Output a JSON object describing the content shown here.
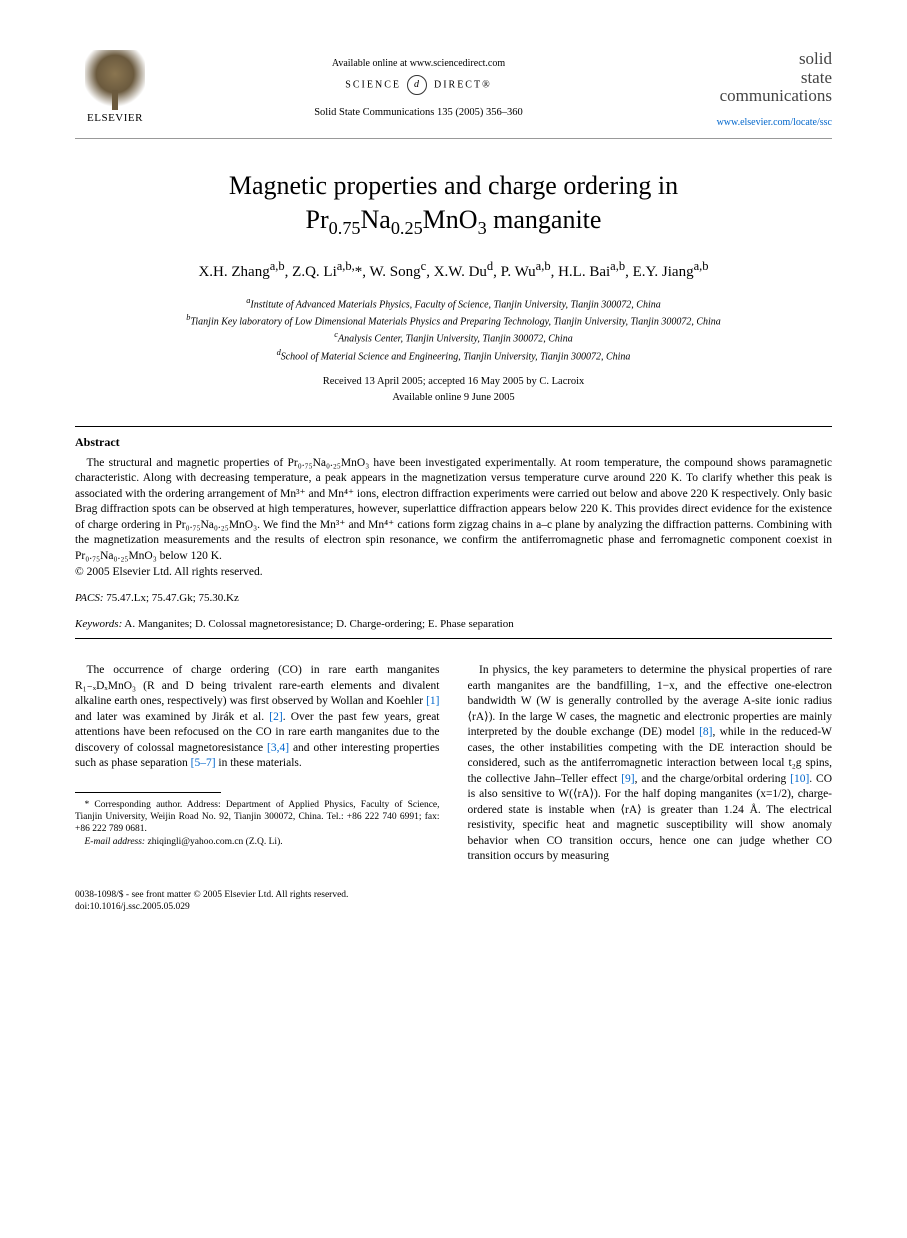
{
  "header": {
    "publisher": "ELSEVIER",
    "available_online": "Available online at www.sciencedirect.com",
    "sd_brand_left": "SCIENCE",
    "sd_brand_right": "DIRECT®",
    "journal_ref": "Solid State Communications 135 (2005) 356–360",
    "journal_name_l1": "solid",
    "journal_name_l2": "state",
    "journal_name_l3": "communications",
    "journal_url": "www.elsevier.com/locate/ssc"
  },
  "title": {
    "line1": "Magnetic properties and charge ordering in",
    "line2_prefix": "Pr",
    "line2_sub1": "0.75",
    "line2_mid1": "Na",
    "line2_sub2": "0.25",
    "line2_mid2": "MnO",
    "line2_sub3": "3",
    "line2_suffix": " manganite"
  },
  "authors_html": "X.H. Zhang<sup>a,b</sup>, Z.Q. Li<sup>a,b,</sup>*, W. Song<sup>c</sup>, X.W. Du<sup>d</sup>, P. Wu<sup>a,b</sup>, H.L. Bai<sup>a,b</sup>, E.Y. Jiang<sup>a,b</sup>",
  "affiliations": {
    "a": "Institute of Advanced Materials Physics, Faculty of Science, Tianjin University, Tianjin 300072, China",
    "b": "Tianjin Key laboratory of Low Dimensional Materials Physics and Preparing Technology, Tianjin University, Tianjin 300072, China",
    "c": "Analysis Center, Tianjin University, Tianjin 300072, China",
    "d": "School of Material Science and Engineering, Tianjin University, Tianjin 300072, China"
  },
  "dates": {
    "received": "Received 13 April 2005; accepted 16 May 2005 by C. Lacroix",
    "online": "Available online 9 June 2005"
  },
  "abstract": {
    "heading": "Abstract",
    "text": "The structural and magnetic properties of Pr₀.₇₅Na₀.₂₅MnO₃ have been investigated experimentally. At room temperature, the compound shows paramagnetic characteristic. Along with decreasing temperature, a peak appears in the magnetization versus temperature curve around 220 K. To clarify whether this peak is associated with the ordering arrangement of Mn³⁺ and Mn⁴⁺ ions, electron diffraction experiments were carried out below and above 220 K respectively. Only basic Brag diffraction spots can be observed at high temperatures, however, superlattice diffraction appears below 220 K. This provides direct evidence for the existence of charge ordering in Pr₀.₇₅Na₀.₂₅MnO₃. We find the Mn³⁺ and Mn⁴⁺ cations form zigzag chains in a–c plane by analyzing the diffraction patterns. Combining with the magnetization measurements and the results of electron spin resonance, we confirm the antiferromagnetic phase and ferromagnetic component coexist in Pr₀.₇₅Na₀.₂₅MnO₃ below 120 K.",
    "copyright": "© 2005 Elsevier Ltd. All rights reserved."
  },
  "pacs": {
    "label": "PACS:",
    "codes": " 75.47.Lx; 75.47.Gk; 75.30.Kz"
  },
  "keywords": {
    "label": "Keywords:",
    "text": " A. Manganites; D. Colossal magnetoresistance; D. Charge-ordering; E. Phase separation"
  },
  "body": {
    "col1_p1": "The occurrence of charge ordering (CO) in rare earth manganites R₁₋ₓDₓMnO₃ (R and D being trivalent rare-earth elements and divalent alkaline earth ones, respectively) was first observed by Wollan and Koehler [1] and later was examined by Jirák et al. [2]. Over the past few years, great attentions have been refocused on the CO in rare earth manganites due to the discovery of colossal magnetoresistance [3,4] and other interesting properties such as phase separation [5–7] in these materials.",
    "col2_p1": "In physics, the key parameters to determine the physical properties of rare earth manganites are the bandfilling, 1−x, and the effective one-electron bandwidth W (W is generally controlled by the average A-site ionic radius ⟨rA⟩). In the large W cases, the magnetic and electronic properties are mainly interpreted by the double exchange (DE) model [8], while in the reduced-W cases, the other instabilities competing with the DE interaction should be considered, such as the antiferromagnetic interaction between local t₂g spins, the collective Jahn–Teller effect [9], and the charge/orbital ordering [10]. CO is also sensitive to W(⟨rA⟩). For the half doping manganites (x=1/2), charge-ordered state is instable when ⟨rA⟩ is greater than 1.24 Å. The electrical resistivity, specific heat and magnetic susceptibility will show anomaly behavior when CO transition occurs, hence one can judge whether CO transition occurs by measuring"
  },
  "footnote": {
    "corresponding": "* Corresponding author. Address: Department of Applied Physics, Faculty of Science, Tianjin University, Weijin Road No. 92, Tianjin 300072, China. Tel.: +86 222 740 6991; fax: +86 222 789 0681.",
    "email_label": "E-mail address:",
    "email": " zhiqingli@yahoo.com.cn (Z.Q. Li)."
  },
  "footer": {
    "line1": "0038-1098/$ - see front matter © 2005 Elsevier Ltd. All rights reserved.",
    "doi": "doi:10.1016/j.ssc.2005.05.029"
  }
}
